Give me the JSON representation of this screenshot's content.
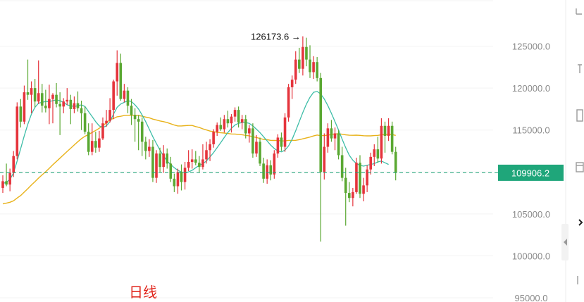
{
  "chart_data": {
    "type": "candlestick",
    "title": "",
    "period_label": "日线",
    "ylim": [
      94500,
      130500
    ],
    "y_ticks": [
      95000.0,
      100000.0,
      105000.0,
      110000.0,
      115000.0,
      120000.0,
      125000.0
    ],
    "y_tick_labels": [
      "95000.0",
      "100000.0",
      "105000.0",
      "110000.0",
      "115000.0",
      "120000.0",
      "125000.0"
    ],
    "current_price": 109906.2,
    "current_price_label": "109906.2",
    "high_annotation": {
      "value": 126173.6,
      "label": "126173.6 →"
    },
    "grid": true,
    "colors": {
      "up": "#e5343c",
      "down": "#5aa832",
      "ma_short": "#3dbda7",
      "ma_long": "#e8b21a",
      "price_badge": "#1fa67a",
      "period_label": "#e0241b"
    },
    "candles": [
      {
        "o": 108100,
        "h": 109600,
        "l": 107500,
        "c": 108900
      },
      {
        "o": 108900,
        "h": 111000,
        "l": 108300,
        "c": 108500
      },
      {
        "o": 108500,
        "h": 110400,
        "l": 107700,
        "c": 109900
      },
      {
        "o": 109900,
        "h": 112500,
        "l": 109400,
        "c": 111900
      },
      {
        "o": 111900,
        "h": 118300,
        "l": 111500,
        "c": 117800
      },
      {
        "o": 117800,
        "h": 118700,
        "l": 115300,
        "c": 116000
      },
      {
        "o": 116000,
        "h": 120300,
        "l": 115700,
        "c": 119500
      },
      {
        "o": 119500,
        "h": 123400,
        "l": 118600,
        "c": 119200
      },
      {
        "o": 119200,
        "h": 120800,
        "l": 117000,
        "c": 120000
      },
      {
        "o": 120000,
        "h": 121100,
        "l": 117700,
        "c": 118400
      },
      {
        "o": 118400,
        "h": 123300,
        "l": 118100,
        "c": 119400
      },
      {
        "o": 119400,
        "h": 120500,
        "l": 117100,
        "c": 117900
      },
      {
        "o": 117900,
        "h": 119800,
        "l": 117100,
        "c": 117600
      },
      {
        "o": 117600,
        "h": 120400,
        "l": 115700,
        "c": 118700
      },
      {
        "o": 118700,
        "h": 119400,
        "l": 115800,
        "c": 119200
      },
      {
        "o": 119200,
        "h": 120600,
        "l": 117700,
        "c": 118100
      },
      {
        "o": 118100,
        "h": 119500,
        "l": 114400,
        "c": 117800
      },
      {
        "o": 117800,
        "h": 118800,
        "l": 117000,
        "c": 118400
      },
      {
        "o": 118400,
        "h": 120000,
        "l": 118000,
        "c": 118600
      },
      {
        "o": 118600,
        "h": 119200,
        "l": 115700,
        "c": 117500
      },
      {
        "o": 117500,
        "h": 119000,
        "l": 117000,
        "c": 118200
      },
      {
        "o": 118200,
        "h": 119600,
        "l": 117200,
        "c": 117600
      },
      {
        "o": 117600,
        "h": 118500,
        "l": 115000,
        "c": 117000
      },
      {
        "o": 117000,
        "h": 117800,
        "l": 114500,
        "c": 114800
      },
      {
        "o": 114800,
        "h": 115800,
        "l": 112000,
        "c": 112400
      },
      {
        "o": 112400,
        "h": 115800,
        "l": 112000,
        "c": 113700
      },
      {
        "o": 113700,
        "h": 114800,
        "l": 112300,
        "c": 112900
      },
      {
        "o": 112900,
        "h": 114900,
        "l": 112400,
        "c": 114000
      },
      {
        "o": 114000,
        "h": 116500,
        "l": 113800,
        "c": 115800
      },
      {
        "o": 115800,
        "h": 117400,
        "l": 115400,
        "c": 116100
      },
      {
        "o": 116100,
        "h": 118800,
        "l": 115900,
        "c": 117400
      },
      {
        "o": 117400,
        "h": 121000,
        "l": 116300,
        "c": 120800
      },
      {
        "o": 120800,
        "h": 124500,
        "l": 119100,
        "c": 123000
      },
      {
        "o": 123000,
        "h": 124100,
        "l": 118500,
        "c": 118700
      },
      {
        "o": 118700,
        "h": 120500,
        "l": 118300,
        "c": 119700
      },
      {
        "o": 119700,
        "h": 120100,
        "l": 117000,
        "c": 117900
      },
      {
        "o": 117900,
        "h": 118700,
        "l": 115600,
        "c": 116800
      },
      {
        "o": 116800,
        "h": 117600,
        "l": 113600,
        "c": 116300
      },
      {
        "o": 116300,
        "h": 116800,
        "l": 112600,
        "c": 116000
      },
      {
        "o": 116000,
        "h": 116500,
        "l": 111900,
        "c": 113600
      },
      {
        "o": 113600,
        "h": 114200,
        "l": 111500,
        "c": 112500
      },
      {
        "o": 112500,
        "h": 113900,
        "l": 111800,
        "c": 113000
      },
      {
        "o": 113000,
        "h": 113800,
        "l": 108800,
        "c": 109300
      },
      {
        "o": 109300,
        "h": 112600,
        "l": 108700,
        "c": 112200
      },
      {
        "o": 112200,
        "h": 112900,
        "l": 110000,
        "c": 110600
      },
      {
        "o": 110600,
        "h": 113200,
        "l": 109900,
        "c": 112200
      },
      {
        "o": 112200,
        "h": 112800,
        "l": 110400,
        "c": 111000
      },
      {
        "o": 111000,
        "h": 111800,
        "l": 108800,
        "c": 109200
      },
      {
        "o": 109200,
        "h": 109800,
        "l": 107600,
        "c": 108300
      },
      {
        "o": 108300,
        "h": 110400,
        "l": 107400,
        "c": 110000
      },
      {
        "o": 110000,
        "h": 110900,
        "l": 107800,
        "c": 108800
      },
      {
        "o": 108800,
        "h": 111200,
        "l": 107900,
        "c": 110500
      },
      {
        "o": 110500,
        "h": 112600,
        "l": 110100,
        "c": 111200
      },
      {
        "o": 111200,
        "h": 112700,
        "l": 110400,
        "c": 111500
      },
      {
        "o": 111500,
        "h": 112500,
        "l": 110800,
        "c": 111100
      },
      {
        "o": 111100,
        "h": 111900,
        "l": 110000,
        "c": 110600
      },
      {
        "o": 110600,
        "h": 113300,
        "l": 110300,
        "c": 111500
      },
      {
        "o": 111500,
        "h": 113600,
        "l": 111000,
        "c": 112600
      },
      {
        "o": 112600,
        "h": 113900,
        "l": 111300,
        "c": 113300
      },
      {
        "o": 113300,
        "h": 115100,
        "l": 112900,
        "c": 114800
      },
      {
        "o": 114800,
        "h": 115900,
        "l": 114300,
        "c": 115600
      },
      {
        "o": 115600,
        "h": 116500,
        "l": 114900,
        "c": 115100
      },
      {
        "o": 115100,
        "h": 116800,
        "l": 114700,
        "c": 116300
      },
      {
        "o": 116300,
        "h": 117300,
        "l": 115300,
        "c": 115800
      },
      {
        "o": 115800,
        "h": 116900,
        "l": 114700,
        "c": 116600
      },
      {
        "o": 116600,
        "h": 117700,
        "l": 116000,
        "c": 117400
      },
      {
        "o": 117400,
        "h": 117800,
        "l": 115300,
        "c": 115900
      },
      {
        "o": 115900,
        "h": 116800,
        "l": 115100,
        "c": 116300
      },
      {
        "o": 116300,
        "h": 116800,
        "l": 114000,
        "c": 114600
      },
      {
        "o": 114600,
        "h": 115600,
        "l": 113500,
        "c": 115200
      },
      {
        "o": 115200,
        "h": 115800,
        "l": 111700,
        "c": 112200
      },
      {
        "o": 112200,
        "h": 114400,
        "l": 111800,
        "c": 113600
      },
      {
        "o": 113600,
        "h": 114100,
        "l": 110700,
        "c": 111000
      },
      {
        "o": 111000,
        "h": 111700,
        "l": 108700,
        "c": 109200
      },
      {
        "o": 109200,
        "h": 111500,
        "l": 108600,
        "c": 110800
      },
      {
        "o": 110800,
        "h": 111400,
        "l": 109000,
        "c": 109700
      },
      {
        "o": 109700,
        "h": 112600,
        "l": 109200,
        "c": 112200
      },
      {
        "o": 112200,
        "h": 114500,
        "l": 111700,
        "c": 114100
      },
      {
        "o": 114100,
        "h": 114700,
        "l": 112500,
        "c": 113000
      },
      {
        "o": 113000,
        "h": 117000,
        "l": 112400,
        "c": 116500
      },
      {
        "o": 116500,
        "h": 120500,
        "l": 116000,
        "c": 120100
      },
      {
        "o": 120100,
        "h": 121500,
        "l": 118700,
        "c": 121000
      },
      {
        "o": 121000,
        "h": 124400,
        "l": 120500,
        "c": 123400
      },
      {
        "o": 123400,
        "h": 124800,
        "l": 121800,
        "c": 122300
      },
      {
        "o": 122300,
        "h": 126173.6,
        "l": 121500,
        "c": 124900
      },
      {
        "o": 124900,
        "h": 126000,
        "l": 122600,
        "c": 123400
      },
      {
        "o": 123400,
        "h": 125100,
        "l": 121200,
        "c": 121900
      },
      {
        "o": 121900,
        "h": 123800,
        "l": 121100,
        "c": 123100
      },
      {
        "o": 123100,
        "h": 123700,
        "l": 120800,
        "c": 121200
      },
      {
        "o": 121200,
        "h": 121800,
        "l": 101700,
        "c": 110000
      },
      {
        "o": 110000,
        "h": 114600,
        "l": 109100,
        "c": 113000
      },
      {
        "o": 113000,
        "h": 115800,
        "l": 112300,
        "c": 115200
      },
      {
        "o": 115200,
        "h": 116200,
        "l": 113600,
        "c": 114000
      },
      {
        "o": 114000,
        "h": 115300,
        "l": 112600,
        "c": 114600
      },
      {
        "o": 114600,
        "h": 115000,
        "l": 111500,
        "c": 112000
      },
      {
        "o": 112000,
        "h": 113000,
        "l": 108900,
        "c": 109300
      },
      {
        "o": 109300,
        "h": 110500,
        "l": 103600,
        "c": 107500
      },
      {
        "o": 107500,
        "h": 108800,
        "l": 106400,
        "c": 106900
      },
      {
        "o": 106900,
        "h": 108100,
        "l": 105900,
        "c": 107600
      },
      {
        "o": 107600,
        "h": 111700,
        "l": 107400,
        "c": 111100
      },
      {
        "o": 111100,
        "h": 112000,
        "l": 106900,
        "c": 107400
      },
      {
        "o": 107400,
        "h": 109300,
        "l": 106500,
        "c": 108400
      },
      {
        "o": 108400,
        "h": 110800,
        "l": 107600,
        "c": 110300
      },
      {
        "o": 110300,
        "h": 112300,
        "l": 109700,
        "c": 111800
      },
      {
        "o": 111800,
        "h": 113300,
        "l": 110700,
        "c": 112700
      },
      {
        "o": 112700,
        "h": 114200,
        "l": 111100,
        "c": 111600
      },
      {
        "o": 111600,
        "h": 116400,
        "l": 111000,
        "c": 115500
      },
      {
        "o": 115500,
        "h": 116000,
        "l": 112300,
        "c": 114300
      },
      {
        "o": 114300,
        "h": 116400,
        "l": 113700,
        "c": 115500
      },
      {
        "o": 115500,
        "h": 116000,
        "l": 112100,
        "c": 112400
      },
      {
        "o": 112400,
        "h": 113000,
        "l": 109000,
        "c": 109906.2
      }
    ],
    "ma_short": [
      108600,
      108800,
      109100,
      109900,
      111300,
      112800,
      114300,
      115700,
      116900,
      117700,
      118200,
      118300,
      118400,
      118400,
      118500,
      118600,
      118500,
      118300,
      118000,
      117900,
      117800,
      117900,
      118000,
      117800,
      117200,
      116600,
      116000,
      115500,
      115300,
      115500,
      116000,
      116900,
      117700,
      118100,
      118300,
      118500,
      118400,
      118000,
      117500,
      116800,
      116000,
      115100,
      114200,
      113400,
      112600,
      111900,
      111300,
      110900,
      110500,
      110200,
      110000,
      109900,
      110000,
      110200,
      110500,
      110800,
      111000,
      111300,
      111800,
      112300,
      112900,
      113500,
      114100,
      114700,
      115200,
      115600,
      115800,
      115900,
      115900,
      115800,
      115500,
      115100,
      114700,
      114200,
      113700,
      113200,
      112800,
      112500,
      112400,
      112600,
      113100,
      113900,
      114900,
      116000,
      117100,
      118100,
      118900,
      119500,
      119600,
      119300,
      118700,
      117900,
      117000,
      116000,
      115000,
      113900,
      112900,
      112000,
      111400,
      111000,
      110800,
      110700,
      110800,
      110900,
      111000,
      111200,
      111300,
      111100,
      110900
    ]
  },
  "y_axis": {
    "tick_labels": [
      "95000.0",
      "100000.0",
      "105000.0",
      "110000.0",
      "115000.0",
      "120000.0",
      "125000.0"
    ]
  },
  "toolbar": {
    "icons": [
      "line-tool-icon",
      "text-tool-icon",
      "ruler-icon",
      "calendar-icon",
      "collapse-toggle-icon",
      "expand-arrow-icon"
    ]
  }
}
